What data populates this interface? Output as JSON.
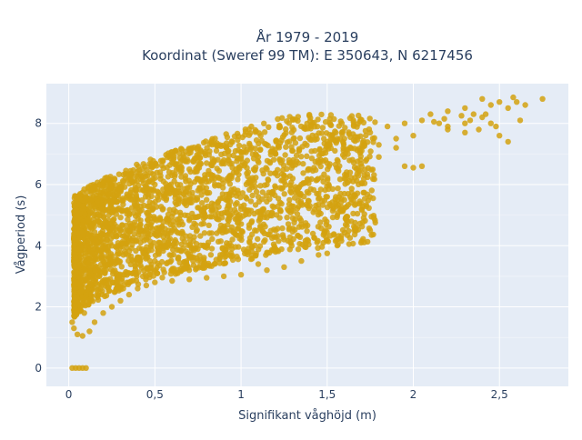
{
  "chart_data": {
    "type": "scatter",
    "title": "År 1979 - 2019",
    "subtitle": "Koordinat (Sweref 99 TM): E 350643, N 6217456",
    "xlabel": "Signifikant våghöjd (m)",
    "ylabel": "Vågperiod (s)",
    "xlim": [
      -0.13,
      2.9
    ],
    "ylim": [
      -0.6,
      9.3
    ],
    "x_ticks": [
      0,
      0.5,
      1,
      1.5,
      2,
      2.5
    ],
    "x_tick_labels": [
      "0",
      "0,5",
      "1",
      "1,5",
      "2",
      "2,5"
    ],
    "y_ticks": [
      0,
      2,
      4,
      6,
      8
    ],
    "y_tick_labels": [
      "0",
      "2",
      "4",
      "6",
      "8"
    ],
    "grid": true,
    "legend": "none",
    "series": [
      {
        "marker_color": "#d4a20f",
        "plot_bg": "#e5ecf6",
        "points": [
          [
            0.02,
            0
          ],
          [
            0.04,
            0
          ],
          [
            0.06,
            0
          ],
          [
            0.08,
            0
          ],
          [
            0.1,
            0
          ],
          [
            0.02,
            1.5
          ],
          [
            0.03,
            1.3
          ],
          [
            0.05,
            1.1
          ],
          [
            0.08,
            1.05
          ],
          [
            0.12,
            1.2
          ],
          [
            0.04,
            2.2
          ],
          [
            0.06,
            2.8
          ],
          [
            0.08,
            3.4
          ],
          [
            0.1,
            4.0
          ],
          [
            0.12,
            4.6
          ],
          [
            0.05,
            5.0
          ],
          [
            0.08,
            5.3
          ],
          [
            0.1,
            5.6
          ],
          [
            0.14,
            5.8
          ],
          [
            0.18,
            6.0
          ],
          [
            0.04,
            3.6
          ],
          [
            0.03,
            4.2
          ],
          [
            0.05,
            4.8
          ],
          [
            0.07,
            2.5
          ],
          [
            0.09,
            1.8
          ],
          [
            0.15,
            1.5
          ],
          [
            0.2,
            1.8
          ],
          [
            0.25,
            2.0
          ],
          [
            0.3,
            2.2
          ],
          [
            0.35,
            2.4
          ],
          [
            0.4,
            2.6
          ],
          [
            0.45,
            2.7
          ],
          [
            0.5,
            2.8
          ],
          [
            0.6,
            2.85
          ],
          [
            0.7,
            2.9
          ],
          [
            0.8,
            2.95
          ],
          [
            0.9,
            3.0
          ],
          [
            1.0,
            3.05
          ],
          [
            0.15,
            3.0
          ],
          [
            0.2,
            3.5
          ],
          [
            0.25,
            4.0
          ],
          [
            0.3,
            4.5
          ],
          [
            0.35,
            5.0
          ],
          [
            0.4,
            5.5
          ],
          [
            0.3,
            5.8
          ],
          [
            0.45,
            5.9
          ],
          [
            0.5,
            6.0
          ],
          [
            0.55,
            6.1
          ],
          [
            0.6,
            6.3
          ],
          [
            0.65,
            6.4
          ],
          [
            0.7,
            6.5
          ],
          [
            0.75,
            6.6
          ],
          [
            0.8,
            6.7
          ],
          [
            0.9,
            6.8
          ],
          [
            1.0,
            6.85
          ],
          [
            1.1,
            6.9
          ],
          [
            1.2,
            7.0
          ],
          [
            1.3,
            7.1
          ],
          [
            0.5,
            3.5
          ],
          [
            0.55,
            4.0
          ],
          [
            0.6,
            4.5
          ],
          [
            0.65,
            5.0
          ],
          [
            0.7,
            5.5
          ],
          [
            0.75,
            5.8
          ],
          [
            0.8,
            5.5
          ],
          [
            0.85,
            5.0
          ],
          [
            0.9,
            4.5
          ],
          [
            0.95,
            4.2
          ],
          [
            0.6,
            3.2
          ],
          [
            0.7,
            3.6
          ],
          [
            0.8,
            4.0
          ],
          [
            1.0,
            4.3
          ],
          [
            1.05,
            4.1
          ],
          [
            1.0,
            5.2
          ],
          [
            1.1,
            5.6
          ],
          [
            1.2,
            5.9
          ],
          [
            1.3,
            6.2
          ],
          [
            1.4,
            6.5
          ],
          [
            1.5,
            6.7
          ],
          [
            1.6,
            6.9
          ],
          [
            1.7,
            7.1
          ],
          [
            1.8,
            7.3
          ],
          [
            1.9,
            7.5
          ],
          [
            2.0,
            7.6
          ],
          [
            1.5,
            7.3
          ],
          [
            1.6,
            7.5
          ],
          [
            1.75,
            7.7
          ],
          [
            1.85,
            7.9
          ],
          [
            1.95,
            8.0
          ],
          [
            2.05,
            8.1
          ],
          [
            2.15,
            8.0
          ],
          [
            2.2,
            7.9
          ],
          [
            2.3,
            8.0
          ],
          [
            1.2,
            4.5
          ],
          [
            1.3,
            4.9
          ],
          [
            1.4,
            5.3
          ],
          [
            1.5,
            5.6
          ],
          [
            1.6,
            5.5
          ],
          [
            1.25,
            4.2
          ],
          [
            1.35,
            4.7
          ],
          [
            1.45,
            5.2
          ],
          [
            1.55,
            5.6
          ],
          [
            1.2,
            3.8
          ],
          [
            1.35,
            3.5
          ],
          [
            1.45,
            3.7
          ],
          [
            1.5,
            3.75
          ],
          [
            1.1,
            3.4
          ],
          [
            1.15,
            3.2
          ],
          [
            1.25,
            3.3
          ],
          [
            1.15,
            6.0
          ],
          [
            1.25,
            6.3
          ],
          [
            1.35,
            6.0
          ],
          [
            1.45,
            5.7
          ],
          [
            1.6,
            6.2
          ],
          [
            1.7,
            6.6
          ],
          [
            1.8,
            6.9
          ],
          [
            1.9,
            7.2
          ],
          [
            0.95,
            6.55
          ],
          [
            1.05,
            6.1
          ],
          [
            1.15,
            6.5
          ],
          [
            1.95,
            6.6
          ],
          [
            2.0,
            6.55
          ],
          [
            2.05,
            6.6
          ],
          [
            1.6,
            5.7
          ],
          [
            1.7,
            5.2
          ],
          [
            2.1,
            8.3
          ],
          [
            2.2,
            8.4
          ],
          [
            2.3,
            8.5
          ],
          [
            2.35,
            8.3
          ],
          [
            2.4,
            8.2
          ],
          [
            2.45,
            8.6
          ],
          [
            2.5,
            8.7
          ],
          [
            2.55,
            8.5
          ],
          [
            2.6,
            8.7
          ],
          [
            2.65,
            8.6
          ],
          [
            2.75,
            8.8
          ],
          [
            2.58,
            8.85
          ],
          [
            2.4,
            8.8
          ],
          [
            2.2,
            7.8
          ],
          [
            2.3,
            7.7
          ],
          [
            2.45,
            8.0
          ],
          [
            2.5,
            7.6
          ],
          [
            2.55,
            7.4
          ],
          [
            2.62,
            8.1
          ],
          [
            2.48,
            7.9
          ],
          [
            2.38,
            7.8
          ],
          [
            2.42,
            8.3
          ],
          [
            2.33,
            8.1
          ],
          [
            2.28,
            8.25
          ],
          [
            2.18,
            8.15
          ],
          [
            2.12,
            8.05
          ]
        ]
      }
    ]
  }
}
